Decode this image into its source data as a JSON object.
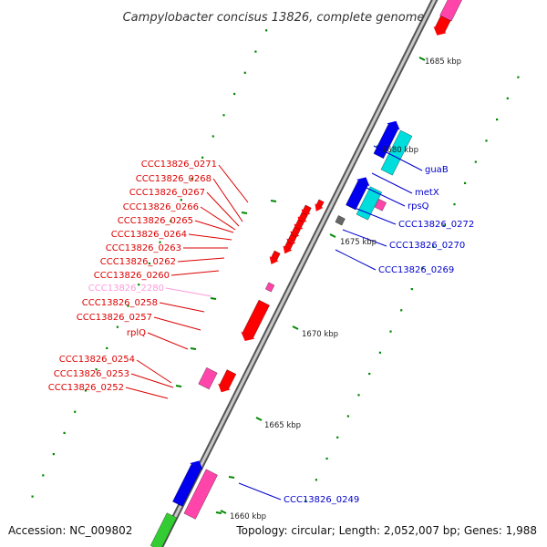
{
  "title": "Campylobacter concisus 13826, complete genome",
  "footer": {
    "accession": "Accession: NC_009802",
    "summary": "Topology: circular; Length: 2,052,007 bp; Genes: 1,988"
  },
  "scale_labels": [
    "1685 kbp",
    "1680 kbp",
    "1675 kbp",
    "1670 kbp",
    "1665 kbp",
    "1660 kbp"
  ],
  "left_genes": [
    "CCC13826_0271",
    "CCC13826_0268",
    "CCC13826_0267",
    "CCC13826_0266",
    "CCC13826_0265",
    "CCC13826_0264",
    "CCC13826_0263",
    "CCC13826_0262",
    "CCC13826_0260",
    "CCC13826_2280",
    "CCC13826_0258",
    "CCC13826_0257",
    "rplQ",
    "CCC13826_0254",
    "CCC13826_0253",
    "CCC13826_0252"
  ],
  "right_genes": [
    "guaB",
    "metX",
    "rpsQ",
    "CCC13826_0272",
    "CCC13826_0270",
    "CCC13826_0269",
    "CCC13826_0249"
  ],
  "colors": {
    "left_label": "#dd0000",
    "left_label_faded": "#ff99dd",
    "right_label": "#0000cc",
    "axis": "#999999",
    "gc_dot": "#008800",
    "feature_red": "#ff0000",
    "feature_blue": "#0000ee",
    "feature_cyan": "#00dddd",
    "feature_pink": "#ff44aa",
    "feature_green": "#33cc33"
  }
}
